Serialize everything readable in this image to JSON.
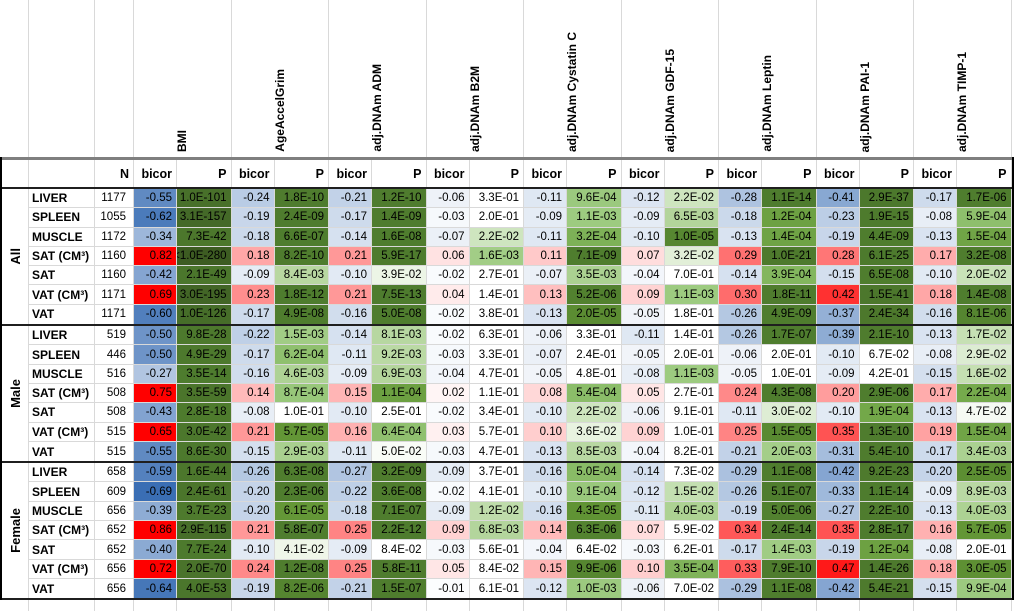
{
  "chart_data": {
    "type": "heatmap_table",
    "columns": {
      "n": "N",
      "bicor": "bicor",
      "p": "P"
    },
    "variables": [
      "BMI",
      "AgeAccelGrim",
      "adj.DNAm ADM",
      "adj.DNAm B2M",
      "adj.DNAm Cystatin C",
      "adj.DNAm GDF-15",
      "adj.DNAm Leptin",
      "adj.DNAm PAI-1",
      "adj.DNAm TIMP-1"
    ],
    "colors": {
      "bicor_positive_max": "#FF0000",
      "bicor_negative_max": "#3A6EB4",
      "p_scale_light": "#C9E2B8",
      "p_scale_mid": "#4F7D2E",
      "p_scale_dark": "#3C5A21",
      "gridline": "#D9D9D9",
      "separator_dark": "#1F1F1F",
      "separator_gray": "#7F7F7F"
    },
    "groups": [
      {
        "label": "All",
        "rows": [
          {
            "tissue": "LIVER",
            "n": "1177",
            "bicor": [
              "-0.55",
              "-0.24",
              "-0.21",
              "-0.06",
              "-0.11",
              "-0.12",
              "-0.28",
              "-0.41",
              "-0.17"
            ],
            "p": [
              "1.0E-101",
              "1.8E-10",
              "1.2E-10",
              "3.3E-01",
              "9.6E-04",
              "2.2E-02",
              "1.1E-14",
              "2.9E-37",
              "1.7E-06"
            ]
          },
          {
            "tissue": "SPLEEN",
            "n": "1055",
            "bicor": [
              "-0.62",
              "-0.19",
              "-0.17",
              "-0.03",
              "-0.09",
              "-0.09",
              "-0.18",
              "-0.23",
              "-0.08"
            ],
            "p": [
              "3.1E-157",
              "2.4E-09",
              "1.4E-09",
              "2.0E-01",
              "1.1E-03",
              "6.5E-03",
              "1.2E-04",
              "1.9E-15",
              "5.9E-04"
            ]
          },
          {
            "tissue": "MUSCLE",
            "n": "1172",
            "bicor": [
              "-0.34",
              "-0.18",
              "-0.14",
              "-0.07",
              "-0.11",
              "-0.10",
              "-0.13",
              "-0.19",
              "-0.13"
            ],
            "p": [
              "7.3E-42",
              "6.6E-07",
              "1.6E-08",
              "2.2E-02",
              "3.2E-04",
              "1.0E-05",
              "1.4E-04",
              "4.4E-09",
              "1.5E-04"
            ]
          },
          {
            "tissue": "SAT (CM³)",
            "n": "1160",
            "bicor": [
              "0.82",
              "0.18",
              "0.21",
              "0.06",
              "0.11",
              "0.07",
              "0.29",
              "0.28",
              "0.17"
            ],
            "p": [
              "<1.0E-280",
              "8.2E-10",
              "5.9E-17",
              "1.6E-03",
              "7.1E-09",
              "3.2E-02",
              "1.0E-21",
              "6.1E-25",
              "3.2E-08"
            ]
          },
          {
            "tissue": "SAT",
            "n": "1160",
            "bicor": [
              "-0.42",
              "-0.09",
              "-0.10",
              "-0.02",
              "-0.07",
              "-0.04",
              "-0.14",
              "-0.15",
              "-0.10"
            ],
            "p": [
              "2.1E-49",
              "8.4E-03",
              "3.9E-02",
              "2.7E-01",
              "3.5E-03",
              "7.0E-01",
              "3.9E-04",
              "6.5E-08",
              "2.0E-02"
            ]
          },
          {
            "tissue": "VAT (CM³)",
            "n": "1171",
            "bicor": [
              "0.69",
              "0.23",
              "0.21",
              "0.04",
              "0.13",
              "0.09",
              "0.30",
              "0.42",
              "0.18"
            ],
            "p": [
              "3.0E-195",
              "1.8E-12",
              "7.5E-13",
              "1.4E-01",
              "5.2E-06",
              "1.1E-03",
              "1.8E-11",
              "1.5E-41",
              "1.4E-08"
            ]
          },
          {
            "tissue": "VAT",
            "n": "1171",
            "bicor": [
              "-0.60",
              "-0.17",
              "-0.16",
              "-0.02",
              "-0.13",
              "-0.05",
              "-0.26",
              "-0.37",
              "-0.16"
            ],
            "p": [
              "1.0E-126",
              "4.9E-08",
              "5.0E-08",
              "3.8E-01",
              "2.0E-05",
              "1.8E-01",
              "4.9E-09",
              "2.4E-34",
              "8.1E-06"
            ]
          }
        ]
      },
      {
        "label": "Male",
        "rows": [
          {
            "tissue": "LIVER",
            "n": "519",
            "bicor": [
              "-0.50",
              "-0.22",
              "-0.14",
              "-0.02",
              "-0.06",
              "-0.11",
              "-0.26",
              "-0.39",
              "-0.13"
            ],
            "p": [
              "9.8E-28",
              "1.5E-03",
              "8.1E-03",
              "6.3E-01",
              "3.3E-01",
              "1.4E-01",
              "1.7E-07",
              "2.1E-10",
              "1.7E-02"
            ]
          },
          {
            "tissue": "SPLEEN",
            "n": "446",
            "bicor": [
              "-0.50",
              "-0.17",
              "-0.11",
              "-0.03",
              "-0.07",
              "-0.05",
              "-0.06",
              "-0.10",
              "-0.08"
            ],
            "p": [
              "4.9E-29",
              "6.2E-04",
              "9.2E-03",
              "3.3E-01",
              "2.4E-01",
              "2.0E-01",
              "2.0E-01",
              "6.7E-02",
              "2.9E-02"
            ]
          },
          {
            "tissue": "MUSCLE",
            "n": "516",
            "bicor": [
              "-0.27",
              "-0.16",
              "-0.09",
              "-0.04",
              "-0.05",
              "-0.08",
              "-0.05",
              "-0.09",
              "-0.15"
            ],
            "p": [
              "3.5E-14",
              "4.6E-03",
              "6.9E-03",
              "4.7E-01",
              "4.8E-01",
              "1.1E-03",
              "1.0E-01",
              "4.2E-01",
              "1.6E-02"
            ]
          },
          {
            "tissue": "SAT (CM³)",
            "n": "508",
            "bicor": [
              "0.75",
              "0.14",
              "0.15",
              "0.02",
              "0.08",
              "0.05",
              "0.24",
              "0.20",
              "0.17"
            ],
            "p": [
              "3.5E-59",
              "8.7E-04",
              "1.1E-04",
              "1.1E-01",
              "5.4E-04",
              "2.7E-01",
              "4.3E-08",
              "2.9E-06",
              "2.2E-04"
            ]
          },
          {
            "tissue": "SAT",
            "n": "508",
            "bicor": [
              "-0.43",
              "-0.08",
              "-0.10",
              "-0.02",
              "-0.10",
              "-0.06",
              "-0.11",
              "-0.10",
              "-0.13"
            ],
            "p": [
              "2.8E-18",
              "1.0E-01",
              "2.5E-01",
              "3.4E-01",
              "2.2E-02",
              "9.1E-01",
              "3.0E-02",
              "1.9E-04",
              "4.7E-02"
            ]
          },
          {
            "tissue": "VAT (CM³)",
            "n": "515",
            "bicor": [
              "0.65",
              "0.21",
              "0.16",
              "0.03",
              "0.10",
              "0.09",
              "0.25",
              "0.35",
              "0.19"
            ],
            "p": [
              "3.0E-42",
              "5.7E-05",
              "6.4E-04",
              "5.7E-01",
              "3.6E-02",
              "1.0E-01",
              "1.5E-05",
              "1.3E-10",
              "1.5E-04"
            ]
          },
          {
            "tissue": "VAT",
            "n": "515",
            "bicor": [
              "-0.55",
              "-0.15",
              "-0.11",
              "-0.03",
              "-0.13",
              "-0.04",
              "-0.21",
              "-0.31",
              "-0.17"
            ],
            "p": [
              "8.6E-30",
              "2.9E-03",
              "5.0E-02",
              "4.7E-01",
              "8.5E-03",
              "8.2E-01",
              "2.0E-03",
              "5.4E-10",
              "3.4E-03"
            ]
          }
        ]
      },
      {
        "label": "Female",
        "rows": [
          {
            "tissue": "LIVER",
            "n": "658",
            "bicor": [
              "-0.59",
              "-0.26",
              "-0.27",
              "-0.09",
              "-0.16",
              "-0.14",
              "-0.29",
              "-0.42",
              "-0.20"
            ],
            "p": [
              "1.6E-44",
              "6.3E-08",
              "3.2E-09",
              "3.7E-01",
              "5.0E-04",
              "7.3E-02",
              "1.1E-08",
              "9.2E-23",
              "2.5E-05"
            ]
          },
          {
            "tissue": "SPLEEN",
            "n": "609",
            "bicor": [
              "-0.69",
              "-0.20",
              "-0.22",
              "-0.02",
              "-0.10",
              "-0.12",
              "-0.26",
              "-0.33",
              "-0.09"
            ],
            "p": [
              "2.4E-61",
              "2.3E-06",
              "3.6E-08",
              "4.1E-01",
              "9.1E-04",
              "1.5E-02",
              "5.1E-07",
              "1.1E-14",
              "8.9E-03"
            ]
          },
          {
            "tissue": "MUSCLE",
            "n": "656",
            "bicor": [
              "-0.39",
              "-0.20",
              "-0.18",
              "-0.09",
              "-0.16",
              "-0.11",
              "-0.19",
              "-0.27",
              "-0.13"
            ],
            "p": [
              "3.7E-23",
              "6.1E-05",
              "7.1E-07",
              "1.2E-02",
              "4.3E-05",
              "4.0E-03",
              "5.0E-06",
              "2.2E-10",
              "4.0E-03"
            ]
          },
          {
            "tissue": "SAT (CM³)",
            "n": "652",
            "bicor": [
              "0.86",
              "0.21",
              "0.25",
              "0.09",
              "0.14",
              "0.07",
              "0.34",
              "0.35",
              "0.16"
            ],
            "p": [
              "2.9E-115",
              "5.8E-07",
              "2.2E-12",
              "6.8E-03",
              "6.3E-06",
              "5.9E-02",
              "2.4E-14",
              "2.8E-17",
              "5.7E-05"
            ]
          },
          {
            "tissue": "SAT",
            "n": "652",
            "bicor": [
              "-0.40",
              "-0.10",
              "-0.09",
              "-0.03",
              "-0.04",
              "-0.03",
              "-0.17",
              "-0.19",
              "-0.08"
            ],
            "p": [
              "7.7E-24",
              "4.1E-02",
              "8.4E-02",
              "5.6E-01",
              "6.4E-02",
              "6.2E-01",
              "1.4E-03",
              "1.2E-04",
              "2.0E-01"
            ]
          },
          {
            "tissue": "VAT (CM³)",
            "n": "656",
            "bicor": [
              "0.72",
              "0.24",
              "0.25",
              "0.05",
              "0.15",
              "0.10",
              "0.33",
              "0.47",
              "0.18"
            ],
            "p": [
              "2.0E-70",
              "1.2E-08",
              "5.8E-11",
              "8.4E-02",
              "9.9E-06",
              "3.5E-04",
              "7.9E-10",
              "1.4E-26",
              "3.0E-05"
            ]
          },
          {
            "tissue": "VAT",
            "n": "656",
            "bicor": [
              "-0.64",
              "-0.19",
              "-0.21",
              "-0.01",
              "-0.12",
              "-0.06",
              "-0.29",
              "-0.42",
              "-0.15"
            ],
            "p": [
              "4.0E-53",
              "8.2E-06",
              "1.5E-07",
              "6.1E-01",
              "1.0E-03",
              "7.0E-02",
              "1.1E-08",
              "5.4E-21",
              "9.9E-04"
            ]
          }
        ]
      }
    ]
  }
}
